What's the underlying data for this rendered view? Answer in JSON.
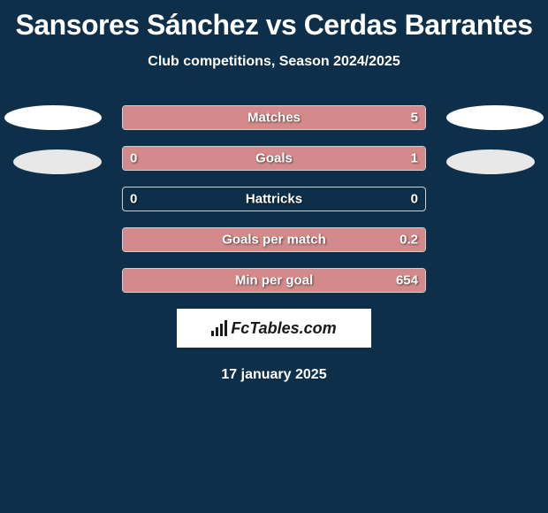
{
  "title": "Sansores Sánchez vs Cerdas Barrantes",
  "subtitle": "Club competitions, Season 2024/2025",
  "date": "17 january 2025",
  "logo_text": "FcTables.com",
  "colors": {
    "background": "#0d2f4a",
    "bar_fill": "#d48a8a",
    "bar_border": "#d0d0d0",
    "text_white": "#ffffff",
    "logo_bg": "#ffffff",
    "logo_text": "#1a1a1a",
    "ellipse_primary": "#ffffff",
    "ellipse_secondary": "#e8e8e8"
  },
  "stats": [
    {
      "label": "Matches",
      "left_value": "",
      "right_value": "5",
      "left_fill_pct": 0,
      "right_fill_pct": 100
    },
    {
      "label": "Goals",
      "left_value": "0",
      "right_value": "1",
      "left_fill_pct": 18,
      "right_fill_pct": 82
    },
    {
      "label": "Hattricks",
      "left_value": "0",
      "right_value": "0",
      "left_fill_pct": 0,
      "right_fill_pct": 0
    },
    {
      "label": "Goals per match",
      "left_value": "",
      "right_value": "0.2",
      "left_fill_pct": 0,
      "right_fill_pct": 100
    },
    {
      "label": "Min per goal",
      "left_value": "",
      "right_value": "654",
      "left_fill_pct": 0,
      "right_fill_pct": 100
    }
  ]
}
